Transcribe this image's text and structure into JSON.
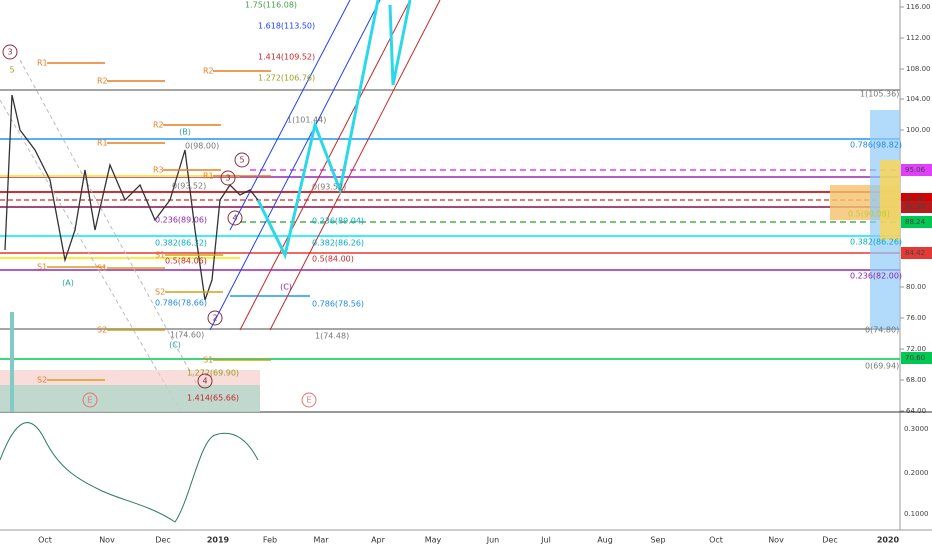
{
  "price_axis": {
    "labels": [
      "116.00",
      "112.00",
      "108.00",
      "104.00",
      "100.00",
      "80.00",
      "76.00",
      "72.00",
      "68.00",
      "64.00"
    ]
  },
  "price_tags": [
    "95.06",
    "91.94",
    "91.08",
    "88.24",
    "84.42",
    "70.60"
  ],
  "indicator_axis": {
    "labels": [
      "0.3000",
      "0.2000",
      "0.1000"
    ]
  },
  "time_axis": {
    "labels": [
      "Oct",
      "Nov",
      "Dec",
      "2019",
      "Feb",
      "Mar",
      "Apr",
      "May",
      "Jun",
      "Jul",
      "Aug",
      "Sep",
      "Oct",
      "Nov",
      "Dec",
      "2020"
    ]
  },
  "fib_labels": [
    "1.75(116.08)",
    "1.618(113.50)",
    "1.414(109.52)",
    "1.272(106.76)",
    "1(101.44)",
    "0(93.52)",
    "0.236(89.04)",
    "0.382(86.26)",
    "0.5(84.00)",
    "0.786(78.56)",
    "1(74.48)",
    "1(105.36)",
    "0.786(98.82)",
    "0.5(90.08)",
    "0.382(86.26)",
    "0.236(82.00)",
    "0(74.80)",
    "0(69.94)",
    "0(98.00)",
    "0(93.52)",
    "0.236(89.06)",
    "0.382(86.32)",
    "0.5(84.06)",
    "0.786(78.66)",
    "1(74.60)",
    "1.272(69.90)",
    "1.414(65.66)"
  ],
  "pivot_labels": [
    "R1",
    "R2",
    "R2",
    "R2",
    "R1",
    "R3",
    "R1",
    "S1",
    "S1",
    "S1",
    "S2",
    "S2",
    "S2",
    "S1"
  ],
  "wave_labels": [
    "(A)",
    "(B)",
    "(C)",
    "(C)",
    "3",
    "5",
    "5",
    "3",
    "4",
    "2",
    "4",
    "E",
    "E"
  ]
}
